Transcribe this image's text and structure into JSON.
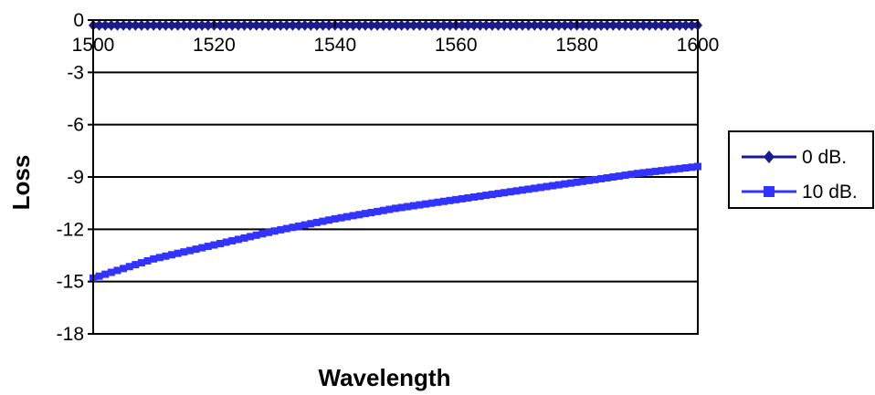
{
  "chart_data": {
    "type": "line",
    "title": "",
    "xlabel": "Wavelength",
    "ylabel": "Loss",
    "xlim": [
      1500,
      1600
    ],
    "ylim": [
      -18,
      0
    ],
    "xticks": [
      1500,
      1520,
      1540,
      1560,
      1580,
      1600
    ],
    "yticks": [
      0,
      -3,
      -6,
      -9,
      -12,
      -15,
      -18
    ],
    "grid": "horizontal",
    "legend_position": "right",
    "series": [
      {
        "name": "0 dB.",
        "color": "#1a1a8c",
        "marker": "diamond",
        "x": [
          1500,
          1510,
          1520,
          1530,
          1540,
          1550,
          1560,
          1570,
          1580,
          1590,
          1600
        ],
        "values": [
          -0.3,
          -0.3,
          -0.3,
          -0.3,
          -0.3,
          -0.3,
          -0.3,
          -0.3,
          -0.3,
          -0.3,
          -0.3
        ]
      },
      {
        "name": "10 dB.",
        "color": "#3333ff",
        "marker": "square",
        "x": [
          1500,
          1510,
          1520,
          1530,
          1540,
          1550,
          1560,
          1570,
          1580,
          1590,
          1600
        ],
        "values": [
          -14.8,
          -13.7,
          -12.9,
          -12.1,
          -11.4,
          -10.8,
          -10.3,
          -9.8,
          -9.3,
          -8.8,
          -8.4
        ]
      }
    ]
  }
}
